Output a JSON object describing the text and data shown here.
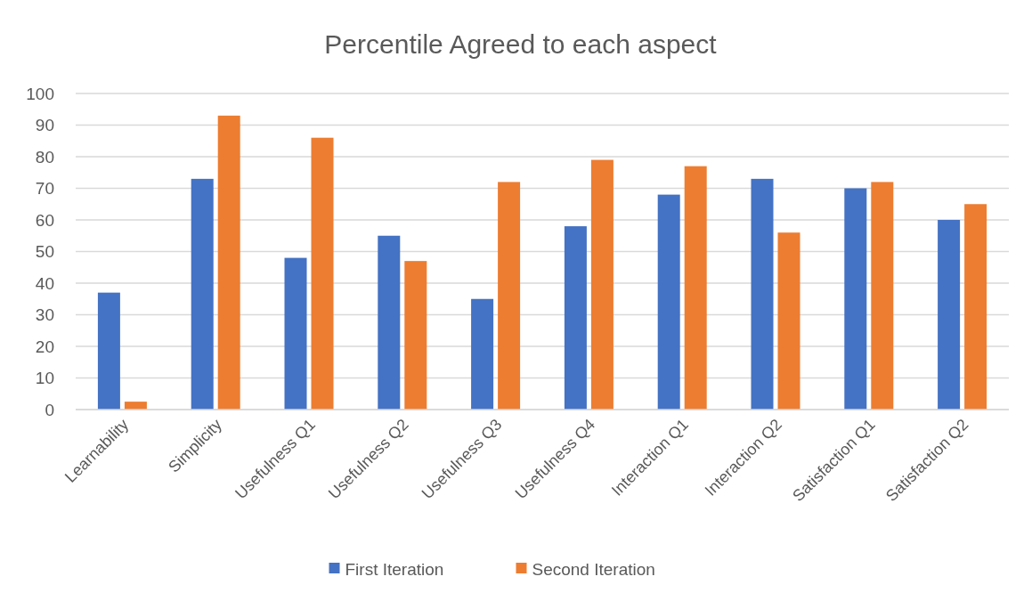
{
  "chart_data": {
    "type": "bar",
    "title": "Percentile Agreed to each aspect",
    "categories": [
      "Learnability",
      "Simplicity",
      "Usefulness Q1",
      "Usefulness Q2",
      "Usefulness Q3",
      "Usefulness Q4",
      "Interaction Q1",
      "Interaction Q2",
      "Satisfaction Q1",
      "Satisfaction Q2"
    ],
    "series": [
      {
        "name": "First Iteration",
        "color": "#4472c4",
        "values": [
          37,
          73,
          48,
          55,
          35,
          58,
          68,
          73,
          70,
          60
        ]
      },
      {
        "name": "Second Iteration",
        "color": "#ed7d31",
        "values": [
          2.5,
          93,
          86,
          47,
          72,
          79,
          77,
          56,
          72,
          65
        ]
      }
    ],
    "ylim": [
      0,
      100
    ],
    "yticks": [
      0,
      10,
      20,
      30,
      40,
      50,
      60,
      70,
      80,
      90,
      100
    ],
    "grid": "y",
    "legend": "bottom"
  }
}
